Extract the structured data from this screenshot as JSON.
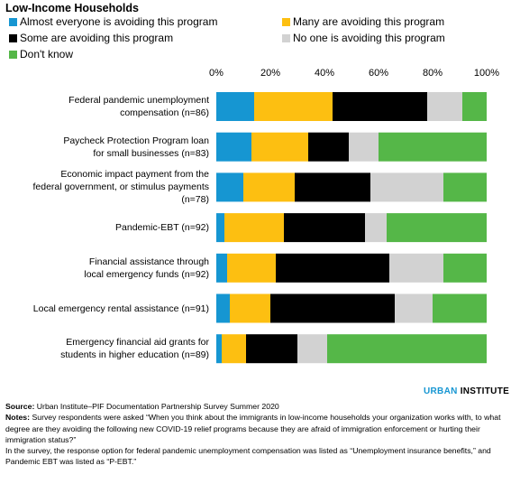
{
  "chart_data": {
    "type": "bar",
    "orientation": "horizontal",
    "stacked": true,
    "title": "Low-Income Households",
    "xlim": [
      0,
      100
    ],
    "x_ticks": [
      "0%",
      "20%",
      "40%",
      "60%",
      "80%",
      "100%"
    ],
    "grid": false,
    "legend_position": "top",
    "categories": [
      "Federal pandemic unemployment\ncompensation (n=86)",
      "Paycheck Protection Program loan\nfor small businesses (n=83)",
      "Economic impact payment from the\nfederal government, or stimulus payments\n(n=78)",
      "Pandemic-EBT (n=92)",
      "Financial assistance through\nlocal emergency funds (n=92)",
      "Local emergency rental assistance (n=91)",
      "Emergency financial aid grants for\nstudents in higher education (n=89)"
    ],
    "series": [
      {
        "name": "Almost everyone is avoiding this program",
        "color": "#1696d2",
        "values": [
          14,
          13,
          10,
          3,
          4,
          5,
          2
        ]
      },
      {
        "name": "Many are avoiding this program",
        "color": "#fdbf11",
        "values": [
          29,
          21,
          19,
          22,
          18,
          15,
          9
        ]
      },
      {
        "name": "Some are avoiding this program",
        "color": "#000000",
        "values": [
          35,
          15,
          28,
          30,
          42,
          46,
          19
        ]
      },
      {
        "name": "No one is avoiding this program",
        "color": "#d2d2d2",
        "values": [
          13,
          11,
          27,
          8,
          20,
          14,
          11
        ]
      },
      {
        "name": "Don't know",
        "color": "#55b748",
        "values": [
          9,
          40,
          16,
          37,
          16,
          20,
          59
        ]
      }
    ]
  },
  "brand": {
    "name_a": "URBAN",
    "name_b": "INSTITUTE"
  },
  "notes": {
    "source_label": "Source:",
    "source_text": " Urban Institute–PIF Documentation Partnership Survey Summer 2020",
    "notes_label": "Notes:",
    "notes_text": " Survey respondents were asked “When you think about the immigrants in low-income households your organization works with, to what degree are they avoiding the following new COVID-19 relief programs because they are afraid of immigration enforcement or hurting their immigration status?”",
    "notes_text_2": "In the survey, the response option for federal pandemic unemployment compensation was listed as “Unemployment insurance benefits,” and Pandemic EBT was listed as “P-EBT.”"
  }
}
